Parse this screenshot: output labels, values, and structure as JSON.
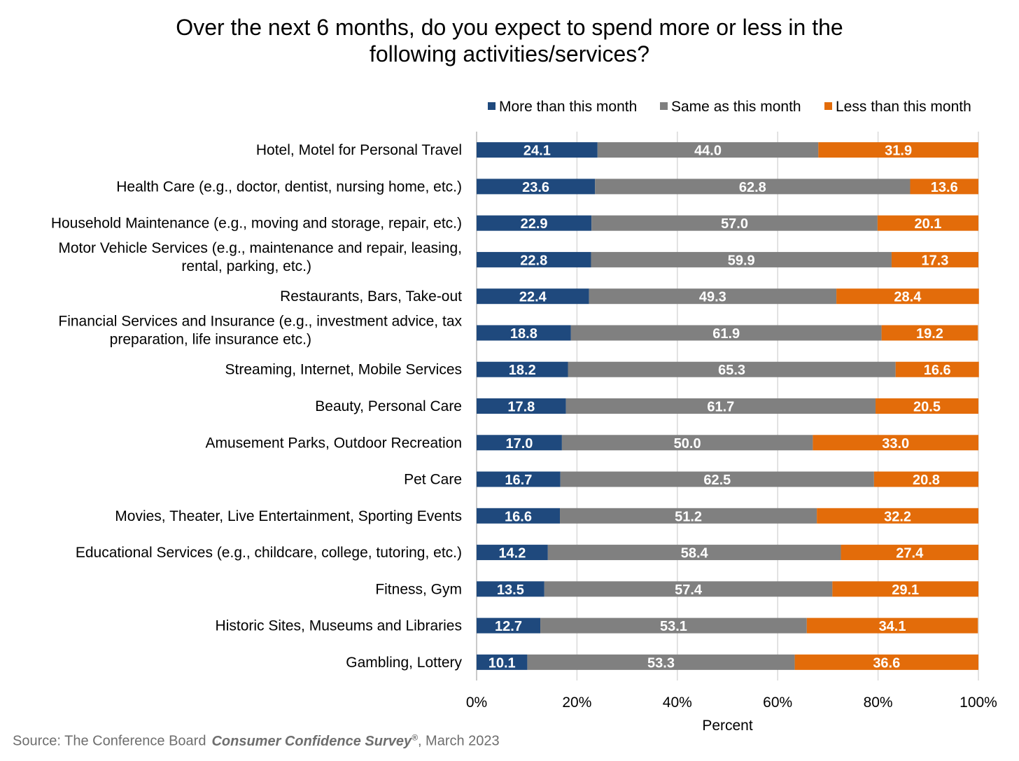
{
  "title_line1": "Over the next 6 months, do you expect to spend more or less in the",
  "title_line2": "following activities/services?",
  "source": {
    "prefix": "Source: The Conference Board",
    "survey": "Consumer Confidence Survey",
    "registered_mark": "®",
    "suffix": ", March 2023"
  },
  "chart_data": {
    "type": "bar",
    "orientation": "horizontal",
    "stacked": "percent",
    "xlabel": "Percent",
    "xlim": [
      0,
      100
    ],
    "xticks": [
      "0%",
      "20%",
      "40%",
      "60%",
      "80%",
      "100%"
    ],
    "grid": true,
    "legend_position": "top-right",
    "categories": [
      [
        "Hotel, Motel for Personal Travel"
      ],
      [
        "Health Care (e.g., doctor, dentist, nursing home, etc.)"
      ],
      [
        "Household Maintenance (e.g., moving and storage, repair, etc.)"
      ],
      [
        "Motor Vehicle Services (e.g., maintenance and repair, leasing,",
        "rental, parking, etc.)"
      ],
      [
        "Restaurants, Bars, Take-out"
      ],
      [
        "Financial Services and Insurance (e.g., investment advice, tax",
        "preparation, life insurance etc.)"
      ],
      [
        "Streaming, Internet, Mobile Services"
      ],
      [
        "Beauty, Personal Care"
      ],
      [
        "Amusement Parks, Outdoor Recreation"
      ],
      [
        "Pet Care"
      ],
      [
        "Movies, Theater, Live Entertainment, Sporting Events"
      ],
      [
        "Educational Services (e.g., childcare, college, tutoring, etc.)"
      ],
      [
        "Fitness, Gym"
      ],
      [
        "Historic Sites, Museums and Libraries"
      ],
      [
        "Gambling, Lottery"
      ]
    ],
    "series": [
      {
        "name": "More than this month",
        "color": "#1f497d",
        "values": [
          24.1,
          23.6,
          22.9,
          22.8,
          22.4,
          18.8,
          18.2,
          17.8,
          17.0,
          16.7,
          16.6,
          14.2,
          13.5,
          12.7,
          10.1
        ],
        "labels": [
          "24.1",
          "23.6",
          "22.9",
          "22.8",
          "22.4",
          "18.8",
          "18.2",
          "17.8",
          "17.0",
          "16.7",
          "16.6",
          "14.2",
          "13.5",
          "12.7",
          "10.1"
        ]
      },
      {
        "name": "Same as this month",
        "color": "#808080",
        "values": [
          44.0,
          62.8,
          57.0,
          59.9,
          49.3,
          61.9,
          65.3,
          61.7,
          50.0,
          62.5,
          51.2,
          58.4,
          57.4,
          53.1,
          53.3
        ],
        "labels": [
          "44.0",
          "62.8",
          "57.0",
          "59.9",
          "49.3",
          "61.9",
          "65.3",
          "61.7",
          "50.0",
          "62.5",
          "51.2",
          "58.4",
          "57.4",
          "53.1",
          "53.3"
        ]
      },
      {
        "name": "Less than this month",
        "color": "#e36c0a",
        "values": [
          31.9,
          13.6,
          20.1,
          17.3,
          28.4,
          19.2,
          16.6,
          20.5,
          33.0,
          20.8,
          32.2,
          27.4,
          29.1,
          34.1,
          36.6
        ],
        "labels": [
          "31.9",
          "13.6",
          "20.1",
          "17.3",
          "28.4",
          "19.2",
          "16.6",
          "20.5",
          "33.0",
          "20.8",
          "32.2",
          "27.4",
          "29.1",
          "34.1",
          "36.6"
        ]
      }
    ]
  }
}
